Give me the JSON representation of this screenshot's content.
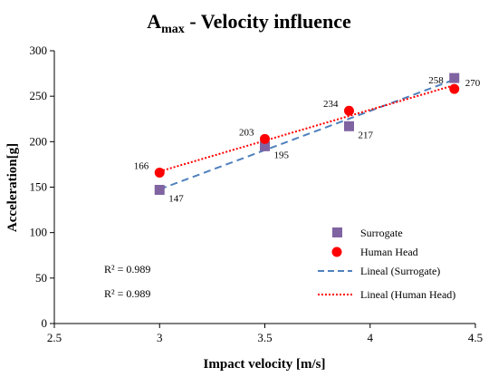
{
  "chart_data": {
    "type": "scatter",
    "title": {
      "main": "A",
      "subscript": "max",
      "rest": " - Velocity influence"
    },
    "xlabel": "Impact velocity [m/s]",
    "ylabel": "Acceleration[g]",
    "xlim": [
      2.5,
      4.5
    ],
    "ylim": [
      0,
      300
    ],
    "xticks": [
      2.5,
      3,
      3.5,
      4,
      4.5
    ],
    "yticks": [
      0,
      50,
      100,
      150,
      200,
      250,
      300
    ],
    "grid": false,
    "legend_position": "right",
    "series": [
      {
        "name": "Surrogate",
        "marker": "square",
        "color": "#8064A2",
        "x": [
          3.0,
          3.5,
          3.9,
          4.4
        ],
        "y": [
          147,
          195,
          217,
          270
        ],
        "labels": [
          "147",
          "195",
          "217",
          "270"
        ]
      },
      {
        "name": "Human Head",
        "marker": "circle",
        "color": "#FF0000",
        "x": [
          3.0,
          3.5,
          3.9,
          4.4
        ],
        "y": [
          166,
          203,
          234,
          258
        ],
        "labels": [
          "166",
          "203",
          "234",
          "258"
        ]
      }
    ],
    "trendlines": [
      {
        "name": "Lineal (Surrogate)",
        "style": "dashed",
        "color": "#4F81BD",
        "from": [
          3.0,
          147.6
        ],
        "to": [
          4.4,
          268.3
        ]
      },
      {
        "name": "Lineal (Human Head)",
        "style": "dotted",
        "color": "#FF0000",
        "from": [
          3.0,
          167.3
        ],
        "to": [
          4.4,
          262.1
        ]
      }
    ],
    "annotations": [
      "R² = 0.989",
      "R² = 0.989"
    ]
  }
}
